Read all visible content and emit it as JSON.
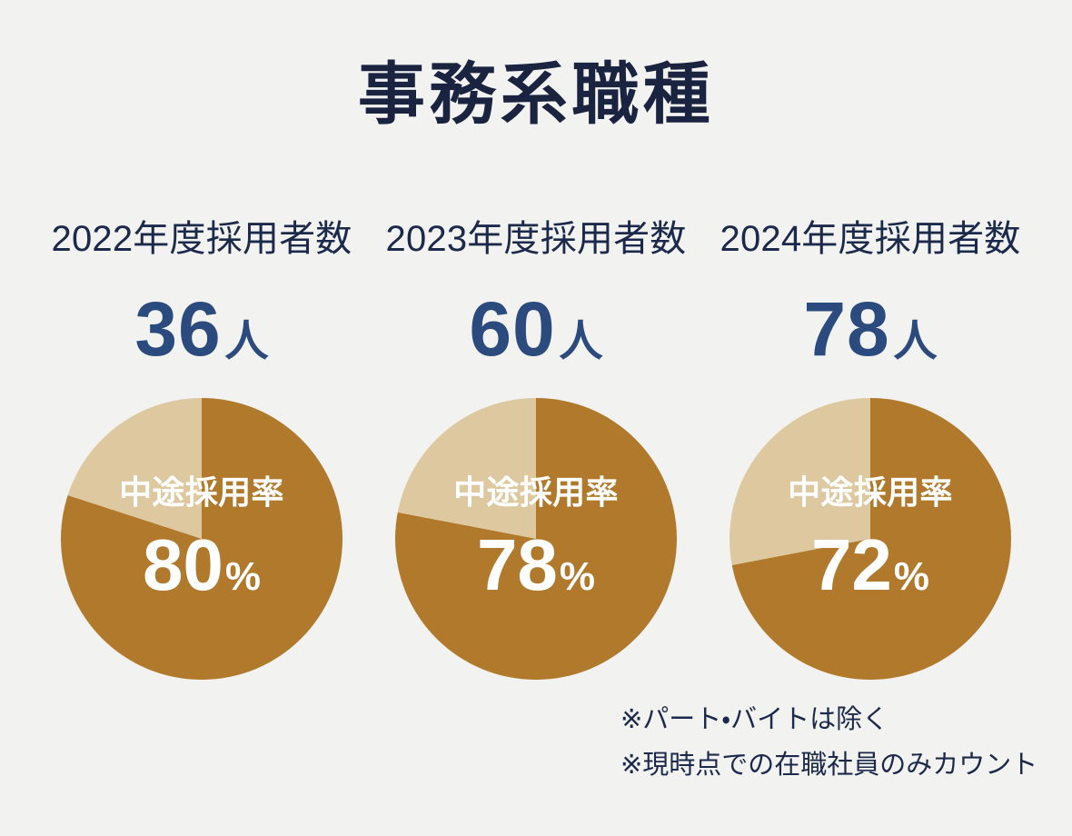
{
  "title": "事務系職種",
  "colors": {
    "background": "#F2F2F0",
    "title_text": "#1A2340",
    "label_text": "#1B2A4B",
    "number_text": "#2B4A7D",
    "pie_main": "#B0792B",
    "pie_rest": "#DDC89F",
    "pie_text": "#FFFFFF"
  },
  "chart_data": [
    {
      "type": "pie",
      "title": "2022年度採用者数",
      "hires": "36",
      "hires_unit": "人",
      "center_label": "中途採用率",
      "rate": "80",
      "rate_unit": "%",
      "values": [
        80,
        20
      ],
      "start_angle_deg": 0,
      "direction": "clockwise"
    },
    {
      "type": "pie",
      "title": "2023年度採用者数",
      "hires": "60",
      "hires_unit": "人",
      "center_label": "中途採用率",
      "rate": "78",
      "rate_unit": "%",
      "values": [
        78,
        22
      ],
      "start_angle_deg": 0,
      "direction": "clockwise"
    },
    {
      "type": "pie",
      "title": "2024年度採用者数",
      "hires": "78",
      "hires_unit": "人",
      "center_label": "中途採用率",
      "rate": "72",
      "rate_unit": "%",
      "values": [
        72,
        28
      ],
      "start_angle_deg": 0,
      "direction": "clockwise"
    }
  ],
  "footnotes": [
    "※パート・バイトは除く",
    "※現時点での在職社員のみカウント"
  ]
}
